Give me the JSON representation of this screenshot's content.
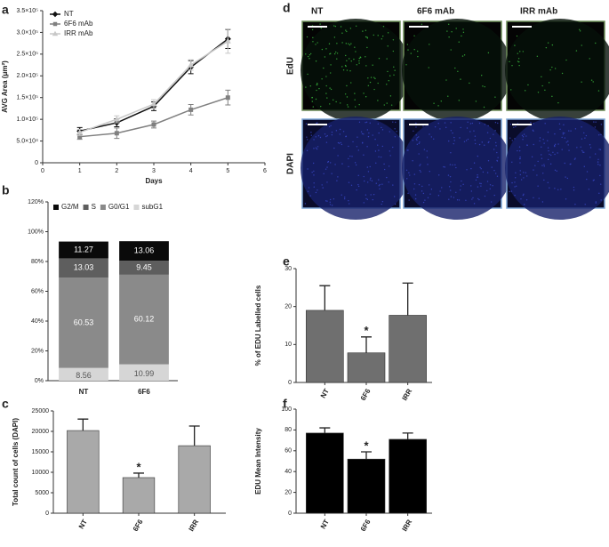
{
  "chart_data": [
    {
      "type": "line",
      "panel": "a",
      "x_label": "Days",
      "y_label": "AVG Area (μm²)",
      "xlim": [
        0,
        6
      ],
      "xticks": [
        0,
        1,
        2,
        3,
        4,
        5,
        6
      ],
      "ylim": [
        0,
        350000
      ],
      "yticks": [
        0,
        {
          "value": 50000,
          "label": "5.0×10⁴"
        },
        {
          "value": 100000,
          "label": "1.0×10⁵"
        },
        {
          "value": 150000,
          "label": "1.5×10⁵"
        },
        {
          "value": 200000,
          "label": "2.0×10⁵"
        },
        {
          "value": 250000,
          "label": "2.5×10⁵"
        },
        {
          "value": 300000,
          "label": "3.0×10⁵"
        },
        {
          "value": 350000,
          "label": "3.5×10⁵"
        }
      ],
      "x": [
        1,
        2,
        3,
        4,
        5
      ],
      "legend": "upper left",
      "series": [
        {
          "name": "NT",
          "color": "#111111",
          "marker": "diamond",
          "values": [
            73000,
            92000,
            130000,
            220000,
            285000
          ],
          "errors": [
            8000,
            9000,
            10000,
            15000,
            22000
          ]
        },
        {
          "name": "6F6 mAb",
          "color": "#808080",
          "marker": "square",
          "values": [
            60000,
            68000,
            88000,
            122000,
            150000
          ],
          "errors": [
            6000,
            12000,
            8000,
            12000,
            17000
          ]
        },
        {
          "name": "IRR mAb",
          "color": "#c8c8c8",
          "marker": "triangle",
          "values": [
            70000,
            100000,
            135000,
            225000,
            280000
          ],
          "errors": [
            7000,
            8000,
            10000,
            12000,
            28000
          ]
        }
      ]
    },
    {
      "type": "stacked_bar",
      "panel": "b",
      "categories": [
        "NT",
        "6F6"
      ],
      "ylim": [
        0,
        120
      ],
      "yticks": [
        {
          "value": 0,
          "label": "0%"
        },
        {
          "value": 20,
          "label": "20%"
        },
        {
          "value": 40,
          "label": "40%"
        },
        {
          "value": 60,
          "label": "60%"
        },
        {
          "value": 80,
          "label": "80%"
        },
        {
          "value": 100,
          "label": "100%"
        },
        {
          "value": 120,
          "label": "120%"
        }
      ],
      "legend": "top",
      "series": [
        {
          "name": "G2/M",
          "color": "#0a0a0a",
          "values": [
            11.27,
            13.06
          ]
        },
        {
          "name": "S",
          "color": "#5e5e5e",
          "values": [
            13.03,
            9.45
          ]
        },
        {
          "name": "G0/G1",
          "color": "#8a8a8a",
          "values": [
            60.53,
            60.12
          ]
        },
        {
          "name": "subG1",
          "color": "#d6d6d6",
          "values": [
            8.56,
            10.99
          ]
        }
      ]
    },
    {
      "type": "bar",
      "panel": "c",
      "y_label": "Total count of cells (DAPI)",
      "categories": [
        "NT",
        "6F6",
        "IRR"
      ],
      "values": [
        20200,
        8700,
        16500
      ],
      "errors": [
        2800,
        1100,
        4800
      ],
      "color": "#a9a9a9",
      "annotations": [
        null,
        "*",
        null
      ],
      "ylim": [
        0,
        25000
      ],
      "yticks": [
        0,
        5000,
        10000,
        15000,
        20000,
        25000
      ]
    },
    {
      "type": "image_grid",
      "panel": "d",
      "columns": [
        "NT",
        "6F6 mAb",
        "IRR mAb"
      ],
      "rows": [
        {
          "label": "EdU",
          "color": "#3cc040"
        },
        {
          "label": "DAPI",
          "color": "#3a48c8"
        }
      ]
    },
    {
      "type": "bar",
      "panel": "e",
      "y_label": "% of EDU Labelled cells",
      "categories": [
        "NT",
        "6F6",
        "IRR"
      ],
      "values": [
        19,
        7.8,
        17.7
      ],
      "errors": [
        6.5,
        4.2,
        8.5
      ],
      "color": "#6f6f6f",
      "annotations": [
        null,
        "*",
        null
      ],
      "ylim": [
        0,
        30
      ],
      "yticks": [
        0,
        10,
        20,
        30
      ]
    },
    {
      "type": "bar",
      "panel": "f",
      "y_label": "EDU Mean Intensity",
      "categories": [
        "NT",
        "6F6",
        "IRR"
      ],
      "values": [
        77,
        52,
        71
      ],
      "errors": [
        5,
        7,
        6
      ],
      "color": "#000000",
      "annotations": [
        null,
        "*",
        null
      ],
      "ylim": [
        0,
        100
      ],
      "yticks": [
        0,
        20,
        40,
        60,
        80,
        100
      ]
    }
  ]
}
